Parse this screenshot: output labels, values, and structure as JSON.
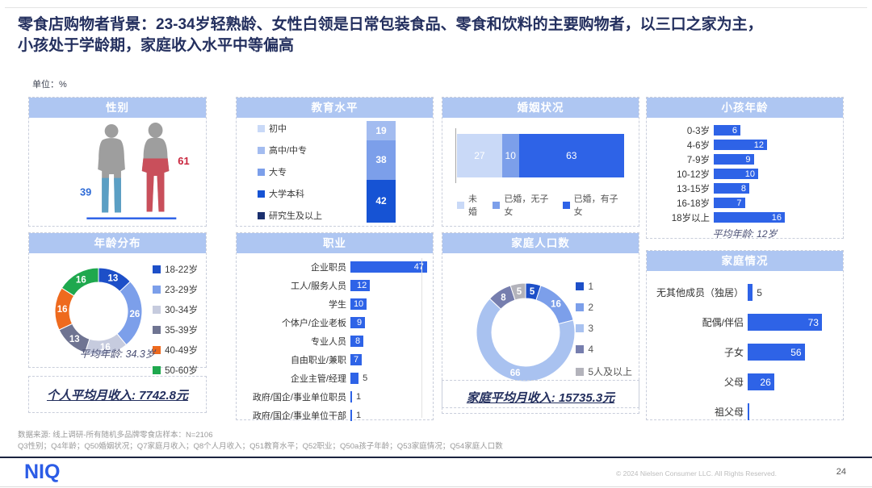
{
  "slide": {
    "title_line1": "零食店购物者背景：23-34岁轻熟龄、女性白领是日常包装食品、零食和饮料的主要购物者，以三口之家为主，",
    "title_line2": "小孩处于学龄期，家庭收入水平中等偏高",
    "unit_label": "单位：%",
    "footer_line1": "数据来源: 线上调研-所有随机多品牌零食店样本：N=2106",
    "footer_line2": "Q3性别；Q4年龄；Q50婚姻状况；Q7家庭月收入；Q8个人月收入；Q51教育水平；Q52职业；Q50a孩子年龄；Q53家庭情况；Q54家庭人口数",
    "logo": "NIQ",
    "copyright": "© 2024 Nielsen Consumer LLC. All Rights Reserved.",
    "page_number": "24"
  },
  "income": {
    "personal": "个人平均月收入: 7742.8元",
    "family": "家庭平均月收入: 15735.3元"
  },
  "colors": {
    "accent_blue": "#2E63E7",
    "header_bg": "#AEC6F2",
    "title_navy": "#232F5E"
  },
  "chart_data": [
    {
      "type": "pictogram",
      "title": "性别",
      "categories": [
        "男",
        "女"
      ],
      "values": [
        39,
        61
      ],
      "fill_colors": [
        "#5B9FC4",
        "#C94F5B"
      ],
      "value_colors": [
        "#2E6BD6",
        "#C9243C"
      ]
    },
    {
      "type": "bar",
      "subtype": "stacked-vertical",
      "title": "教育水平",
      "legend": [
        {
          "label": "初中",
          "color": "#C9D9F7"
        },
        {
          "label": "高中/中专",
          "color": "#A3BCF0"
        },
        {
          "label": "大专",
          "color": "#7C9FEA"
        },
        {
          "label": "大学本科",
          "color": "#1653D4"
        },
        {
          "label": "研究生及以上",
          "color": "#1A2F6E"
        }
      ],
      "segments": [
        {
          "label": "高中/中专",
          "value": 19,
          "color": "#A3BCF0"
        },
        {
          "label": "大专",
          "value": 38,
          "color": "#7C9FEA"
        },
        {
          "label": "大学本科",
          "value": 42,
          "color": "#1653D4"
        }
      ]
    },
    {
      "type": "bar",
      "subtype": "stacked-horizontal",
      "title": "婚姻状况",
      "segments": [
        {
          "label": "未婚",
          "value": 27,
          "color": "#C9D9F7"
        },
        {
          "label": "已婚，无子女",
          "value": 10,
          "color": "#7C9FEA"
        },
        {
          "label": "已婚，有子女",
          "value": 63,
          "color": "#2E63E7"
        }
      ]
    },
    {
      "type": "bar",
      "title": "小孩年龄",
      "categories": [
        "0-3岁",
        "4-6岁",
        "7-9岁",
        "10-12岁",
        "13-15岁",
        "16-18岁",
        "18岁以上"
      ],
      "values": [
        6,
        12,
        9,
        10,
        8,
        7,
        16
      ],
      "bar_color": "#2E63E7",
      "xmax": 16,
      "average": "平均年龄: 12岁"
    },
    {
      "type": "pie",
      "subtype": "donut",
      "title": "年龄分布",
      "categories": [
        "18-22岁",
        "23-29岁",
        "30-34岁",
        "35-39岁",
        "40-49岁",
        "50-60岁"
      ],
      "values": [
        13,
        26,
        16,
        13,
        16,
        16
      ],
      "colors": [
        "#1D4FC8",
        "#7C9FEA",
        "#C6CBDE",
        "#6F7492",
        "#EE6A1E",
        "#1FA84E"
      ],
      "average": "平均年龄: 34.3岁"
    },
    {
      "type": "bar",
      "title": "职业",
      "categories": [
        "企业职员",
        "工人/服务人员",
        "学生",
        "个体户/企业老板",
        "专业人员",
        "自由职业/兼职",
        "企业主管/经理",
        "政府/国企/事业单位职员",
        "政府/国企/事业单位干部"
      ],
      "values": [
        47,
        12,
        10,
        9,
        8,
        7,
        5,
        1,
        1
      ],
      "bar_color": "#2E63E7",
      "xmax": 47
    },
    {
      "type": "pie",
      "subtype": "donut",
      "title": "家庭人口数",
      "categories": [
        "1",
        "2",
        "3",
        "4",
        "5人及以上"
      ],
      "values": [
        5,
        16,
        66,
        8,
        5
      ],
      "colors": [
        "#1D4FC8",
        "#7C9FEA",
        "#A9C2F0",
        "#767EAE",
        "#B3B3BB"
      ]
    },
    {
      "type": "bar",
      "title": "家庭情况",
      "categories": [
        "无其他成员（独居）",
        "配偶/伴侣",
        "子女",
        "父母",
        "祖父母"
      ],
      "values": [
        5,
        73,
        56,
        26,
        null
      ],
      "bar_color": "#2E63E7",
      "xmax": 73
    }
  ]
}
